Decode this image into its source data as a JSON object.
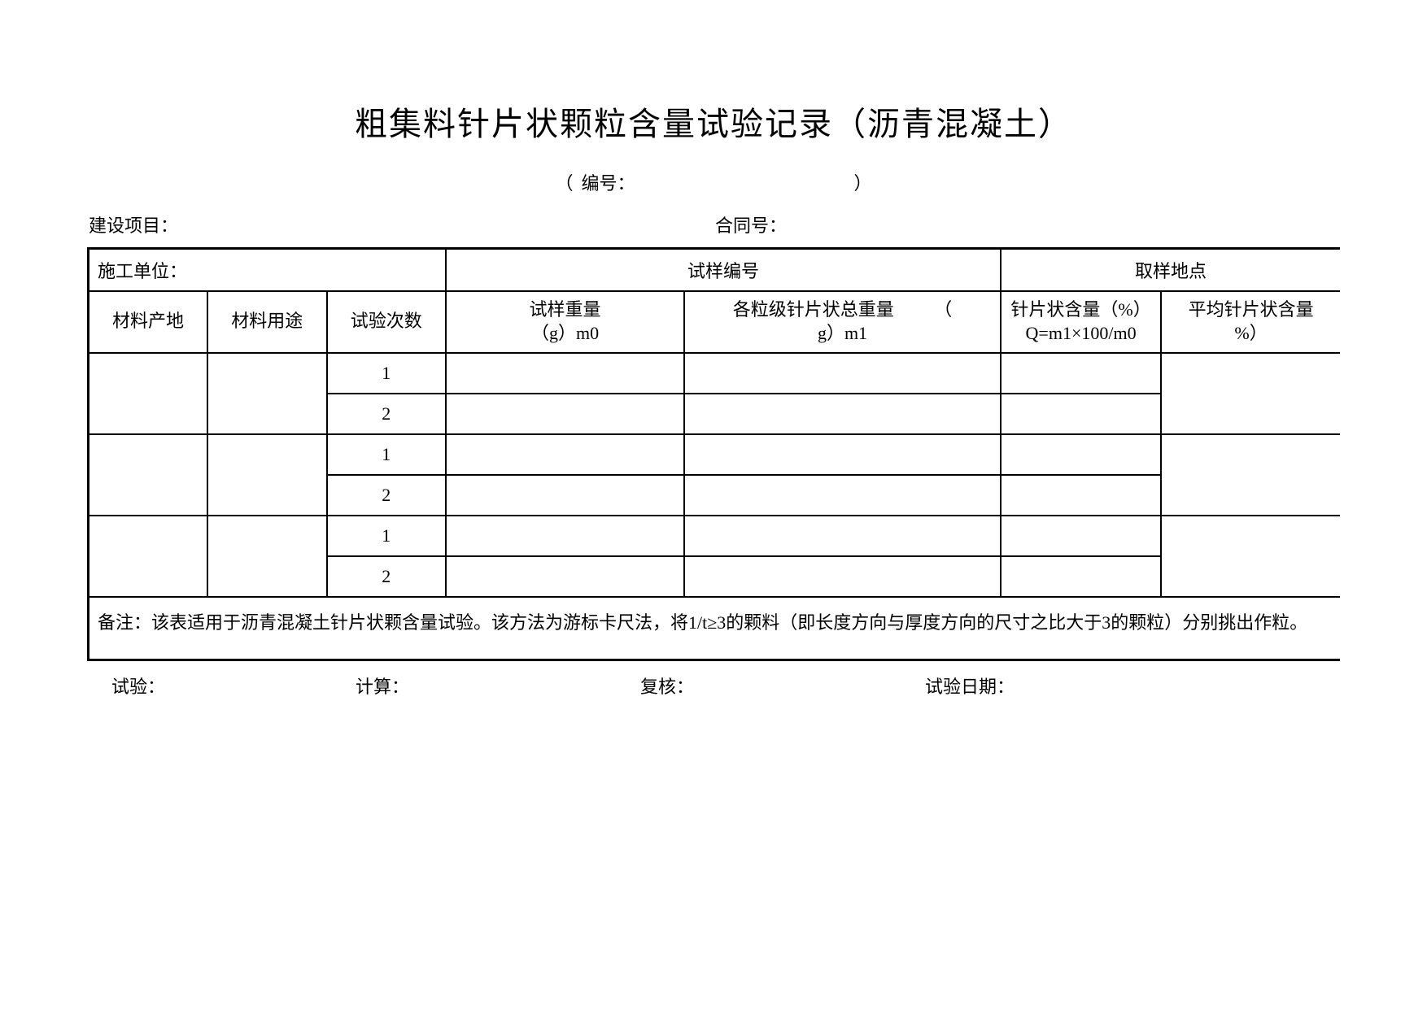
{
  "title": "粗集料针片状颗粒含量试验记录（沥青混凝土）",
  "subtitle": {
    "paren_left": "（",
    "label": "编号：",
    "paren_right": "）"
  },
  "top": {
    "project": "建设项目：",
    "contract": "合同号："
  },
  "header": {
    "unit": "施工单位：",
    "sample_no": "试样编号",
    "sample_loc": "取样地点"
  },
  "columns": {
    "c1": "材料产地",
    "c2": "材料用途",
    "c3": "试验次数",
    "c4_line1": "试样重量",
    "c4_line2": "（g）m0",
    "c5_line1": "各粒级针片状总重量         （",
    "c5_line2": "g）m1",
    "c6_line1": "针片状含量（%）",
    "c6_line2": "Q=m1×100/m0",
    "c7_line1": "平均针片状含量",
    "c7_line2": "%）"
  },
  "rows": [
    {
      "num": "1"
    },
    {
      "num": "2"
    },
    {
      "num": "1"
    },
    {
      "num": "2"
    },
    {
      "num": "1"
    },
    {
      "num": "2"
    }
  ],
  "note": "备注：该表适用于沥青混凝土针片状颗含量试验。该方法为游标卡尺法，将1/t≥3的颗料（即长度方向与厚度方向的尺寸之比大于3的颗粒）分别挑出作粒。",
  "footer": {
    "test": "试验：",
    "calc": "计算：",
    "review": "复核：",
    "date": "试验日期："
  }
}
